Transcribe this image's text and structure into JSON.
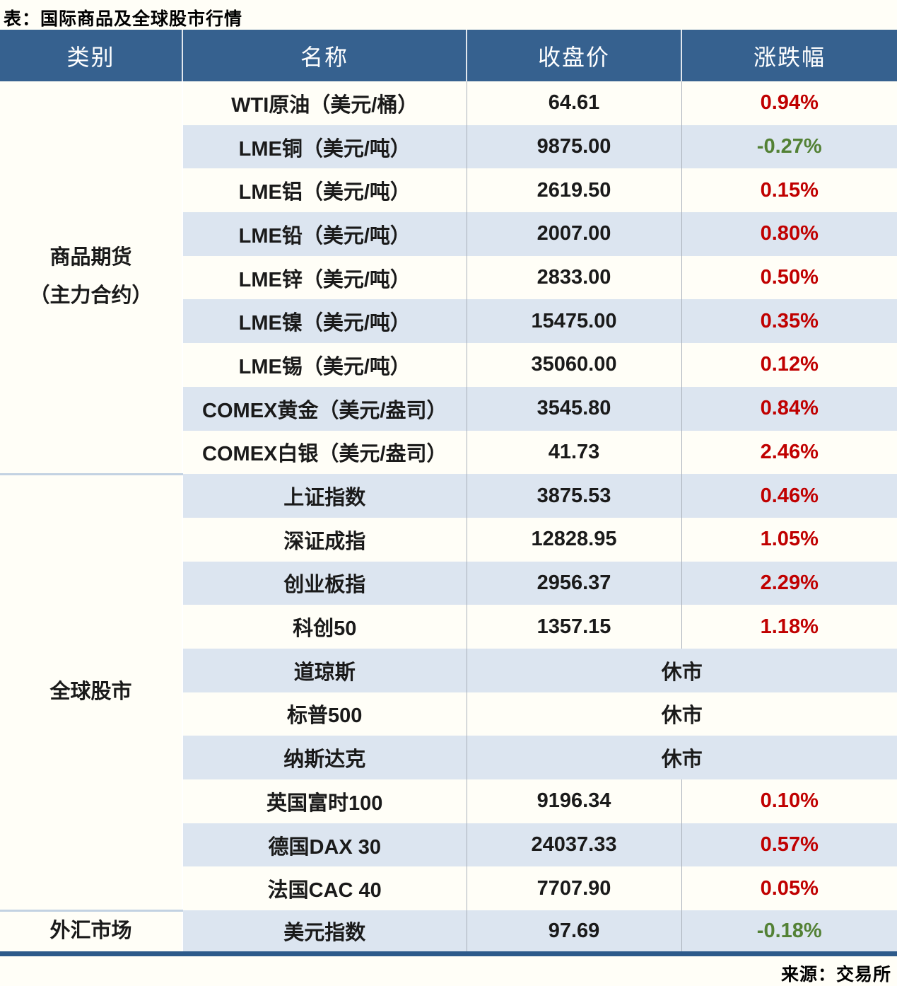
{
  "title": "表：国际商品及全球股市行情",
  "footer": {
    "source": "来源：交易所"
  },
  "colors": {
    "header-bg": "#36618f",
    "row-alt": "#dce5f0",
    "up": "#c00000",
    "down": "#538135",
    "accent": "#2d5a8a",
    "page-bg": "#fffef7",
    "grid-line": "#a9b0ba",
    "cat-sep": "#c3d2e2"
  },
  "chart_data": {
    "type": "table",
    "title": "表：国际商品及全球股市行情",
    "source_note": "来源：交易所",
    "columns": {
      "category": "类别",
      "name": "名称",
      "close": "收盘价",
      "change": "涨跌幅"
    },
    "closed_label": "休市",
    "groups": [
      {
        "category": "商品期货",
        "category_line2": "（主力合约）",
        "rows": [
          {
            "name": "WTI原油（美元/桶）",
            "close": "64.61",
            "change": "0.94%",
            "dir": "up"
          },
          {
            "name": "LME铜（美元/吨）",
            "close": "9875.00",
            "change": "-0.27%",
            "dir": "down"
          },
          {
            "name": "LME铝（美元/吨）",
            "close": "2619.50",
            "change": "0.15%",
            "dir": "up"
          },
          {
            "name": "LME铅（美元/吨）",
            "close": "2007.00",
            "change": "0.80%",
            "dir": "up"
          },
          {
            "name": "LME锌（美元/吨）",
            "close": "2833.00",
            "change": "0.50%",
            "dir": "up"
          },
          {
            "name": "LME镍（美元/吨）",
            "close": "15475.00",
            "change": "0.35%",
            "dir": "up"
          },
          {
            "name": "LME锡（美元/吨）",
            "close": "35060.00",
            "change": "0.12%",
            "dir": "up"
          },
          {
            "name": "COMEX黄金（美元/盎司）",
            "close": "3545.80",
            "change": "0.84%",
            "dir": "up"
          },
          {
            "name": "COMEX白银（美元/盎司）",
            "close": "41.73",
            "change": "2.46%",
            "dir": "up"
          }
        ]
      },
      {
        "category": "全球股市",
        "rows": [
          {
            "name": "上证指数",
            "close": "3875.53",
            "change": "0.46%",
            "dir": "up"
          },
          {
            "name": "深证成指",
            "close": "12828.95",
            "change": "1.05%",
            "dir": "up"
          },
          {
            "name": "创业板指",
            "close": "2956.37",
            "change": "2.29%",
            "dir": "up"
          },
          {
            "name": "科创50",
            "close": "1357.15",
            "change": "1.18%",
            "dir": "up"
          },
          {
            "name": "道琼斯",
            "status": "休市"
          },
          {
            "name": "标普500",
            "status": "休市"
          },
          {
            "name": "纳斯达克",
            "status": "休市"
          },
          {
            "name": "英国富时100",
            "close": "9196.34",
            "change": "0.10%",
            "dir": "up"
          },
          {
            "name": "德国DAX 30",
            "close": "24037.33",
            "change": "0.57%",
            "dir": "up"
          },
          {
            "name": "法国CAC 40",
            "close": "7707.90",
            "change": "0.05%",
            "dir": "up"
          }
        ]
      },
      {
        "category": "外汇市场",
        "rows": [
          {
            "name": "美元指数",
            "close": "97.69",
            "change": "-0.18%",
            "dir": "down"
          }
        ]
      }
    ]
  }
}
